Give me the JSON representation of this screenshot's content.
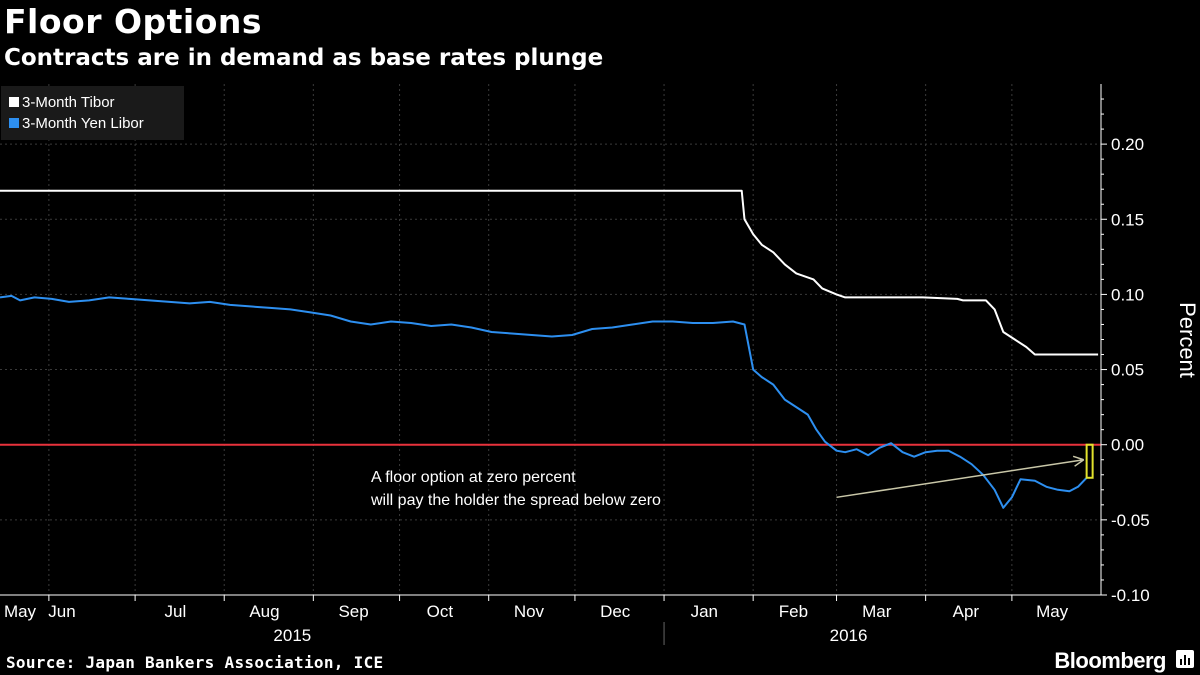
{
  "header": {
    "title": "Floor Options",
    "subtitle": "Contracts are in demand as base rates plunge"
  },
  "footer": {
    "source": "Source: Japan Bankers Association, ICE",
    "brand": "Bloomberg"
  },
  "chart_data": {
    "type": "line",
    "title": "Floor Options",
    "subtitle": "Contracts are in demand as base rates plunge",
    "xlabel": "",
    "ylabel": "Percent",
    "ylim": [
      -0.1,
      0.24
    ],
    "yticks": [
      0.2,
      0.15,
      0.1,
      0.05,
      0.0,
      -0.05,
      -0.1
    ],
    "ytick_labels": [
      "0.20",
      "0.15",
      "0.10",
      "0.05",
      "0.00",
      "-0.05",
      "-0.10"
    ],
    "month_labels": [
      "May",
      "Jun",
      "Jul",
      "Aug",
      "Sep",
      "Oct",
      "Nov",
      "Dec",
      "Jan",
      "Feb",
      "Mar",
      "Apr",
      "May"
    ],
    "month_positions": [
      "2015-05-15",
      "2015-06-15",
      "2015-07-15",
      "2015-08-15",
      "2015-09-15",
      "2015-10-15",
      "2015-11-15",
      "2015-12-15",
      "2016-01-15",
      "2016-02-15",
      "2016-03-15",
      "2016-04-15",
      "2016-05-15"
    ],
    "month_boundaries": [
      "2015-06-01",
      "2015-07-01",
      "2015-08-01",
      "2015-09-01",
      "2015-10-01",
      "2015-11-01",
      "2015-12-01",
      "2016-01-01",
      "2016-02-01",
      "2016-03-01",
      "2016-04-01",
      "2016-05-01"
    ],
    "year_labels": [
      "2015",
      "2016"
    ],
    "year_positions": [
      "2015-09-01",
      "2016-03-01"
    ],
    "year_divider": "2016-01-01",
    "xlim": [
      "2015-05-15",
      "2016-06-01"
    ],
    "legend_position": "top-left",
    "grid": "dashed vertical at month boundaries",
    "series": [
      {
        "name": "3-Month Tibor",
        "color": "#ffffff",
        "points": [
          [
            "2015-05-15",
            0.169
          ],
          [
            "2016-01-28",
            0.169
          ],
          [
            "2016-01-29",
            0.15
          ],
          [
            "2016-02-01",
            0.14
          ],
          [
            "2016-02-04",
            0.133
          ],
          [
            "2016-02-08",
            0.128
          ],
          [
            "2016-02-12",
            0.12
          ],
          [
            "2016-02-16",
            0.114
          ],
          [
            "2016-02-22",
            0.11
          ],
          [
            "2016-02-25",
            0.104
          ],
          [
            "2016-03-01",
            0.1
          ],
          [
            "2016-03-04",
            0.098
          ],
          [
            "2016-03-31",
            0.098
          ],
          [
            "2016-04-12",
            0.097
          ],
          [
            "2016-04-14",
            0.096
          ],
          [
            "2016-04-22",
            0.096
          ],
          [
            "2016-04-25",
            0.09
          ],
          [
            "2016-04-28",
            0.075
          ],
          [
            "2016-05-02",
            0.07
          ],
          [
            "2016-05-06",
            0.065
          ],
          [
            "2016-05-09",
            0.06
          ],
          [
            "2016-05-31",
            0.06
          ]
        ]
      },
      {
        "name": "3-Month Yen Libor",
        "color": "#2d8ff0",
        "points": [
          [
            "2015-05-15",
            0.098
          ],
          [
            "2015-05-19",
            0.099
          ],
          [
            "2015-05-22",
            0.096
          ],
          [
            "2015-05-27",
            0.098
          ],
          [
            "2015-06-02",
            0.097
          ],
          [
            "2015-06-08",
            0.095
          ],
          [
            "2015-06-15",
            0.096
          ],
          [
            "2015-06-22",
            0.098
          ],
          [
            "2015-06-29",
            0.097
          ],
          [
            "2015-07-06",
            0.096
          ],
          [
            "2015-07-13",
            0.095
          ],
          [
            "2015-07-20",
            0.094
          ],
          [
            "2015-07-27",
            0.095
          ],
          [
            "2015-08-03",
            0.093
          ],
          [
            "2015-08-10",
            0.092
          ],
          [
            "2015-08-17",
            0.091
          ],
          [
            "2015-08-24",
            0.09
          ],
          [
            "2015-08-31",
            0.088
          ],
          [
            "2015-09-07",
            0.086
          ],
          [
            "2015-09-14",
            0.082
          ],
          [
            "2015-09-21",
            0.08
          ],
          [
            "2015-09-28",
            0.082
          ],
          [
            "2015-10-05",
            0.081
          ],
          [
            "2015-10-12",
            0.079
          ],
          [
            "2015-10-19",
            0.08
          ],
          [
            "2015-10-26",
            0.078
          ],
          [
            "2015-11-02",
            0.075
          ],
          [
            "2015-11-09",
            0.074
          ],
          [
            "2015-11-16",
            0.073
          ],
          [
            "2015-11-23",
            0.072
          ],
          [
            "2015-11-30",
            0.073
          ],
          [
            "2015-12-07",
            0.077
          ],
          [
            "2015-12-14",
            0.078
          ],
          [
            "2015-12-21",
            0.08
          ],
          [
            "2015-12-28",
            0.082
          ],
          [
            "2016-01-04",
            0.082
          ],
          [
            "2016-01-11",
            0.081
          ],
          [
            "2016-01-18",
            0.081
          ],
          [
            "2016-01-25",
            0.082
          ],
          [
            "2016-01-29",
            0.08
          ],
          [
            "2016-02-01",
            0.05
          ],
          [
            "2016-02-04",
            0.045
          ],
          [
            "2016-02-08",
            0.04
          ],
          [
            "2016-02-12",
            0.03
          ],
          [
            "2016-02-16",
            0.025
          ],
          [
            "2016-02-20",
            0.02
          ],
          [
            "2016-02-23",
            0.01
          ],
          [
            "2016-02-26",
            0.002
          ],
          [
            "2016-03-01",
            -0.004
          ],
          [
            "2016-03-04",
            -0.005
          ],
          [
            "2016-03-08",
            -0.003
          ],
          [
            "2016-03-12",
            -0.007
          ],
          [
            "2016-03-16",
            -0.002
          ],
          [
            "2016-03-20",
            0.001
          ],
          [
            "2016-03-24",
            -0.005
          ],
          [
            "2016-03-28",
            -0.008
          ],
          [
            "2016-04-01",
            -0.005
          ],
          [
            "2016-04-05",
            -0.004
          ],
          [
            "2016-04-09",
            -0.004
          ],
          [
            "2016-04-13",
            -0.008
          ],
          [
            "2016-04-17",
            -0.013
          ],
          [
            "2016-04-21",
            -0.02
          ],
          [
            "2016-04-25",
            -0.03
          ],
          [
            "2016-04-28",
            -0.042
          ],
          [
            "2016-05-01",
            -0.035
          ],
          [
            "2016-05-04",
            -0.023
          ],
          [
            "2016-05-09",
            -0.024
          ],
          [
            "2016-05-13",
            -0.028
          ],
          [
            "2016-05-17",
            -0.03
          ],
          [
            "2016-05-21",
            -0.031
          ],
          [
            "2016-05-24",
            -0.028
          ],
          [
            "2016-05-27",
            -0.022
          ]
        ]
      }
    ],
    "reference_lines": [
      {
        "y": 0.0,
        "color": "#e8323c"
      }
    ],
    "annotation": {
      "lines": [
        "A floor option at zero percent",
        "will pay the holder the spread below zero"
      ],
      "arrow_from": [
        "2016-03-01",
        -0.035
      ],
      "arrow_to": [
        "2016-05-26",
        -0.01
      ],
      "highlight": {
        "date": "2016-05-27",
        "from": 0.0,
        "to": -0.022,
        "color": "#e3e32c"
      }
    }
  }
}
